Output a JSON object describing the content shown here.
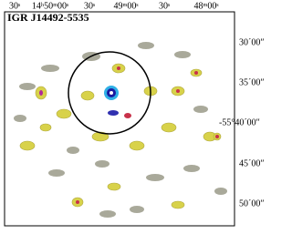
{
  "title": "IGR J14492-5535",
  "ra_labels": [
    "30ˢ",
    "14ʰ50ᵐ00ˢ",
    "30ˢ",
    "49ᵐ00ˢ",
    "30ˢ",
    "48ᵐ00ˢ"
  ],
  "dec_labels": [
    "30´00″",
    "35´00″",
    "-55°40´00″",
    "45´00″",
    "50´00″"
  ]
}
